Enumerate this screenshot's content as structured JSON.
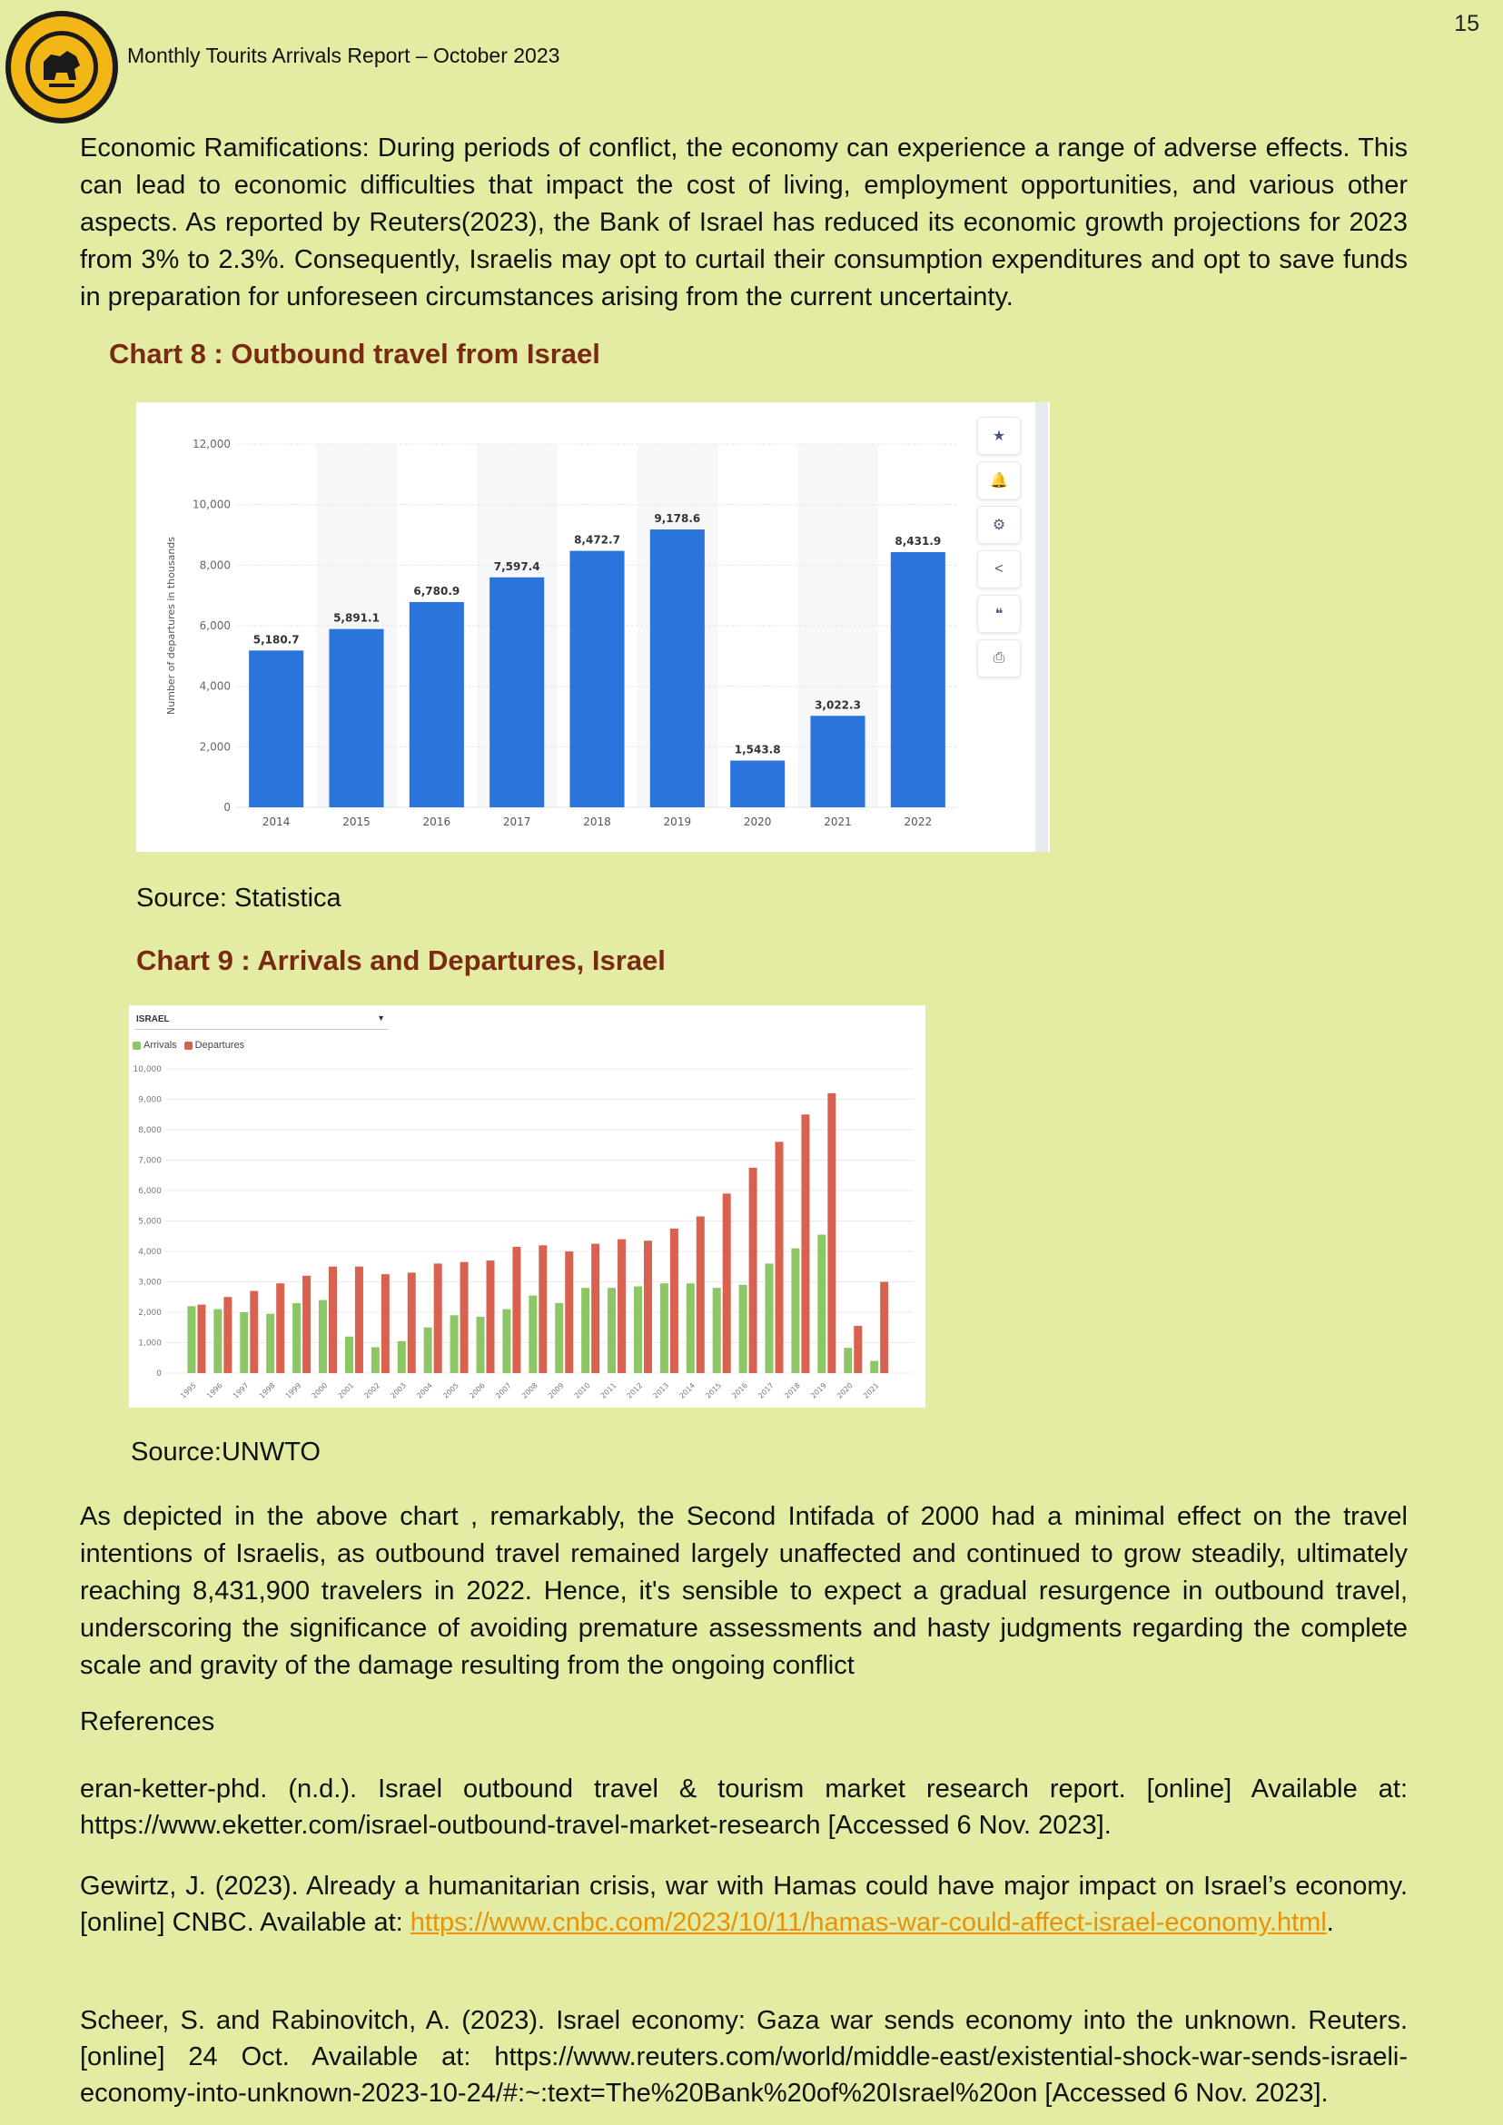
{
  "header": {
    "title": "Monthly Tourits Arrivals Report – October 2023",
    "page_number": "15"
  },
  "intro_paragraph": "Economic Ramifications: During periods of conflict, the economy can experience a range of adverse effects. This can lead to economic difficulties that impact the cost of living, employment opportunities, and various other aspects. As reported by Reuters(2023), the Bank of Israel has reduced its economic growth projections for 2023 from 3% to 2.3%. Consequently, Israelis may opt to curtail their consumption expenditures and opt to save funds in preparation for unforeseen circumstances arising from the current uncertainty.",
  "chart8": {
    "caption": "Chart 8 : Outbound travel from Israel",
    "source": "Source: Statistica",
    "toolbar_icons": [
      "star-icon",
      "bell-icon",
      "gear-icon",
      "share-icon",
      "quote-icon",
      "print-icon"
    ],
    "toolbar_glyphs": [
      "★",
      "🔔",
      "⚙",
      "<",
      "❝",
      "⎙"
    ]
  },
  "chart9": {
    "caption": "Chart 9 : Arrivals and Departures, Israel",
    "source": "Source:UNWTO",
    "selector_value": "ISRAEL"
  },
  "chart_data": [
    {
      "type": "bar",
      "title": "",
      "ylabel": "Number of departures in thousands",
      "categories": [
        "2014",
        "2015",
        "2016",
        "2017",
        "2018",
        "2019",
        "2020",
        "2021",
        "2022"
      ],
      "values": [
        5180.7,
        5891.1,
        6780.9,
        7597.4,
        8472.7,
        9178.6,
        1543.8,
        3022.3,
        8431.9
      ],
      "value_labels": [
        "5,180.7",
        "5,891.1",
        "6,780.9",
        "7,597.4",
        "8,472.7",
        "9,178.6",
        "1,543.8",
        "3,022.3",
        "8,431.9"
      ],
      "ylim": [
        0,
        12000
      ],
      "yticks": [
        0,
        2000,
        4000,
        6000,
        8000,
        10000,
        12000
      ],
      "ytick_labels": [
        "0",
        "2,000",
        "4,000",
        "6,000",
        "8,000",
        "10,000",
        "12,000"
      ],
      "grid": true,
      "color": "#2a74db"
    },
    {
      "type": "bar",
      "title": "",
      "categories": [
        "1995",
        "1996",
        "1997",
        "1998",
        "1999",
        "2000",
        "2001",
        "2002",
        "2003",
        "2004",
        "2005",
        "2006",
        "2007",
        "2008",
        "2009",
        "2010",
        "2011",
        "2012",
        "2013",
        "2014",
        "2015",
        "2016",
        "2017",
        "2018",
        "2019",
        "2020",
        "2021"
      ],
      "series": [
        {
          "name": "Arrivals",
          "color": "#8cc665",
          "values": [
            2200,
            2100,
            2000,
            1950,
            2300,
            2400,
            1200,
            850,
            1050,
            1500,
            1900,
            1850,
            2100,
            2550,
            2300,
            2800,
            2800,
            2850,
            2950,
            2950,
            2800,
            2900,
            3600,
            4100,
            4550,
            830,
            400
          ]
        },
        {
          "name": "Departures",
          "color": "#d9614f",
          "values": [
            2250,
            2500,
            2700,
            2950,
            3200,
            3500,
            3500,
            3250,
            3300,
            3600,
            3650,
            3700,
            4150,
            4200,
            4000,
            4250,
            4400,
            4350,
            4750,
            5150,
            5900,
            6750,
            7600,
            8500,
            9200,
            1550,
            3000
          ]
        }
      ],
      "ylim": [
        0,
        10000
      ],
      "yticks": [
        0,
        1000,
        2000,
        3000,
        4000,
        5000,
        6000,
        7000,
        8000,
        9000,
        10000
      ],
      "ytick_labels": [
        "0",
        "1,000",
        "2,000",
        "3,000",
        "4,000",
        "5,000",
        "6,000",
        "7,000",
        "8,000",
        "9,000",
        "10,000"
      ],
      "legend": "top-left",
      "grid": true
    }
  ],
  "analysis_paragraph": "As depicted in the above chart , remarkably, the Second Intifada of 2000 had a minimal effect on the travel intentions of Israelis, as outbound travel remained largely unaffected and continued to grow steadily, ultimately reaching 8,431,900 travelers in 2022. Hence, it's sensible to expect a gradual resurgence in outbound travel, underscoring the significance of avoiding premature assessments and hasty judgments regarding the complete scale and gravity of the damage resulting from the ongoing conflict",
  "references": {
    "heading": "References",
    "items": [
      {
        "text": "eran-ketter-phd. (n.d.). Israel outbound travel & tourism market research report. [online] Available at: https://www.eketter.com/israel-outbound-travel-market-research [Accessed 6 Nov. 2023]."
      },
      {
        "text": "Gewirtz, J. (2023). Already a humanitarian crisis, war with Hamas could have major impact on Israel’s economy. [online] CNBC. Available at: ",
        "link": "https://www.cnbc.com/2023/10/11/hamas-war-could-affect-israel-economy.html",
        "suffix": "."
      },
      {
        "text": "Scheer, S. and Rabinovitch, A. (2023). Israel economy: Gaza war sends economy into the unknown. Reuters. [online] 24 Oct. Available at: https://www.reuters.com/world/middle-east/existential-shock-war-sends-israeli-economy-into-unknown-2023-10-24/#:~:text=The%20Bank%20of%20Israel%20on  [Accessed 6 Nov. 2023]."
      }
    ]
  }
}
